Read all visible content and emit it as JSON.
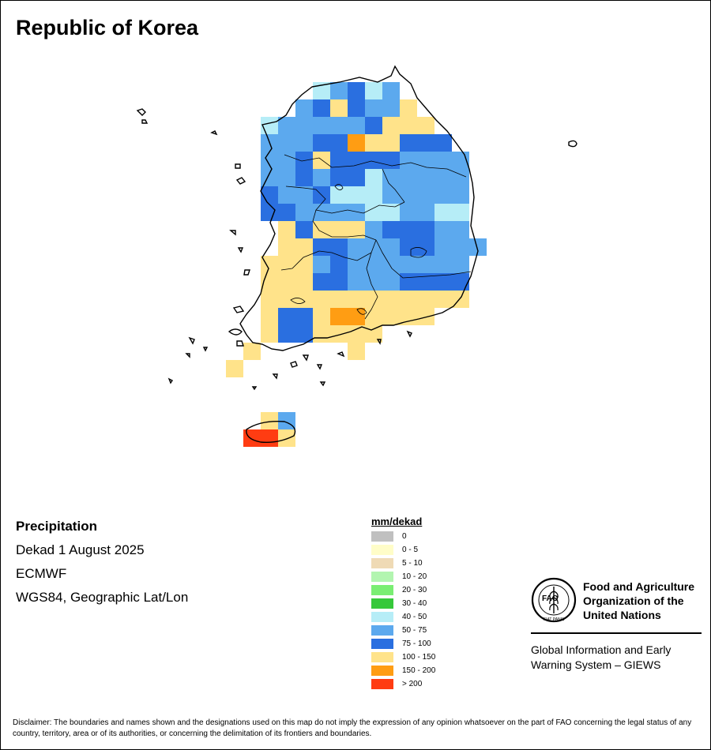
{
  "title": "Republic of Korea",
  "info": {
    "variable": "Precipitation",
    "period": "Dekad 1 August 2025",
    "source": "ECMWF",
    "projection": "WGS84, Geographic Lat/Lon"
  },
  "legend": {
    "title": "mm/dekad",
    "classes": [
      {
        "label": "0",
        "color": "#c0c0c0"
      },
      {
        "label": "0 - 5",
        "color": "#fffdc8"
      },
      {
        "label": "5 - 10",
        "color": "#efdab5"
      },
      {
        "label": "10 - 20",
        "color": "#b2f5b0"
      },
      {
        "label": "20 - 30",
        "color": "#7aee73"
      },
      {
        "label": "30 - 40",
        "color": "#36c83a"
      },
      {
        "label": "40 - 50",
        "color": "#b6edf7"
      },
      {
        "label": "50 - 75",
        "color": "#5ca9ee"
      },
      {
        "label": "75 - 100",
        "color": "#2a6fe0"
      },
      {
        "label": "100 - 150",
        "color": "#ffe38a"
      },
      {
        "label": "150 - 200",
        "color": "#ff9d13"
      },
      {
        "label": "> 200",
        "color": "#ff3c12"
      }
    ]
  },
  "organization": {
    "logo_text": "FAO",
    "logo_motto": "FIAT PANIS",
    "name_lines": [
      "Food and Agriculture",
      "Organization of the",
      "United Nations"
    ],
    "giews_lines": [
      "Global Information and Early",
      "Warning System – GIEWS"
    ]
  },
  "disclaimer": "Disclaimer: The boundaries and names shown and the designations used on this map do not imply the expression of any opinion whatsoever on the part of FAO concerning the legal status of any country, territory, area or of its authorities, or concerning the delimitation of its frontiers and boundaries."
}
